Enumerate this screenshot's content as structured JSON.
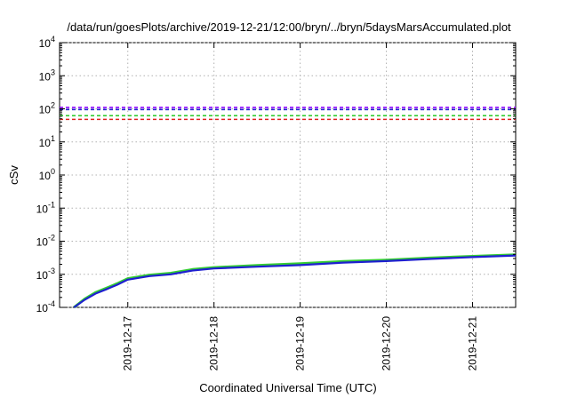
{
  "chart_data": {
    "type": "line",
    "title": "/data/run/goesPlots/archive/2019-12-21/12:00/bryn/../bryn/5daysMarsAccumulated.plot",
    "xlabel": "Coordinated Universal Time (UTC)",
    "ylabel": "cSv",
    "y_scale": "log",
    "ylim": [
      "1e-4",
      "1e4"
    ],
    "xlim": [
      "2019-12-16 05:00",
      "2019-12-21 12:00"
    ],
    "x_tick_labels": [
      "2019-12-17",
      "2019-12-18",
      "2019-12-19",
      "2019-12-20",
      "2019-12-21"
    ],
    "y_tick_labels": [
      {
        "base": "10",
        "exp": "4",
        "value": 10000
      },
      {
        "base": "10",
        "exp": "3",
        "value": 1000
      },
      {
        "base": "10",
        "exp": "2",
        "value": 100
      },
      {
        "base": "10",
        "exp": "1",
        "value": 10
      },
      {
        "base": "10",
        "exp": "0",
        "value": 1
      },
      {
        "base": "10",
        "exp": "-1",
        "value": 0.1
      },
      {
        "base": "10",
        "exp": "-2",
        "value": 0.01
      },
      {
        "base": "10",
        "exp": "-3",
        "value": 0.001
      },
      {
        "base": "10",
        "exp": "-4",
        "value": 0.0001
      }
    ],
    "grid": true,
    "legend": "none",
    "reference_lines": [
      {
        "y": 110,
        "color": "#8b00ff",
        "style": "dashed"
      },
      {
        "y": 95,
        "color": "#1f1fd0",
        "style": "dashed"
      },
      {
        "y": 62,
        "color": "#33cc33",
        "style": "dashed"
      },
      {
        "y": 48,
        "color": "#e02020",
        "style": "dashed"
      }
    ],
    "series": [
      {
        "color": "#33cc33",
        "x": [
          "2019-12-16 09:00",
          "2019-12-16 12:00",
          "2019-12-16 15:00",
          "2019-12-16 18:00",
          "2019-12-16 21:00",
          "2019-12-17 00:00",
          "2019-12-17 06:00",
          "2019-12-17 12:00",
          "2019-12-17 18:00",
          "2019-12-18 00:00",
          "2019-12-18 12:00",
          "2019-12-19 00:00",
          "2019-12-19 12:00",
          "2019-12-20 00:00",
          "2019-12-20 12:00",
          "2019-12-21 00:00",
          "2019-12-21 12:00"
        ],
        "y": [
          0.0001,
          0.00018,
          0.00028,
          0.00038,
          0.00052,
          0.00074,
          0.00095,
          0.00108,
          0.0014,
          0.0016,
          0.00185,
          0.0021,
          0.00245,
          0.0027,
          0.0031,
          0.0035,
          0.0039
        ]
      },
      {
        "color": "#1f1fd0",
        "x": [
          "2019-12-16 09:00",
          "2019-12-16 12:00",
          "2019-12-16 15:00",
          "2019-12-16 18:00",
          "2019-12-16 21:00",
          "2019-12-17 00:00",
          "2019-12-17 06:00",
          "2019-12-17 12:00",
          "2019-12-17 18:00",
          "2019-12-18 00:00",
          "2019-12-18 12:00",
          "2019-12-19 00:00",
          "2019-12-19 12:00",
          "2019-12-20 00:00",
          "2019-12-20 12:00",
          "2019-12-21 00:00",
          "2019-12-21 12:00"
        ],
        "y": [
          0.0001,
          0.00017,
          0.00026,
          0.00035,
          0.00048,
          0.00069,
          0.00088,
          0.001,
          0.0013,
          0.0015,
          0.0017,
          0.0019,
          0.00225,
          0.0025,
          0.0029,
          0.0033,
          0.0037
        ]
      }
    ]
  },
  "colors": {
    "frame": "#000000",
    "grid": "#b0b0b0",
    "background": "#ffffff"
  }
}
